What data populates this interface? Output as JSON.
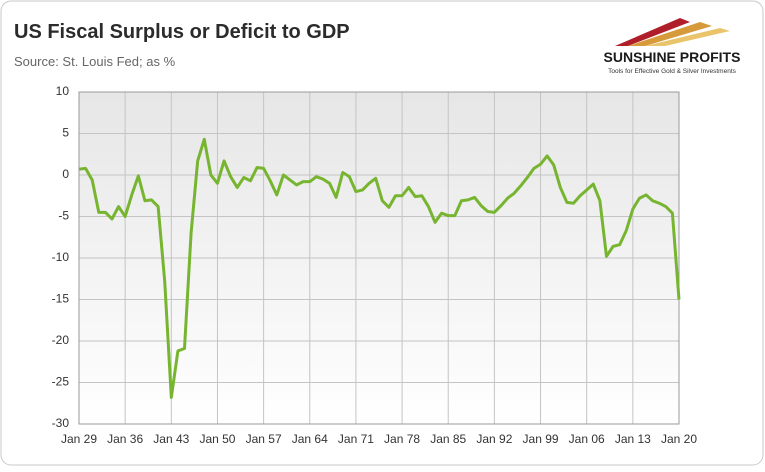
{
  "chart_data": {
    "type": "line",
    "title": "US Fiscal Surplus or Deficit to GDP",
    "subtitle": "Source: St. Louis Fed; as %",
    "categories": [
      "Jan 29",
      null,
      null,
      null,
      null,
      null,
      null,
      "Jan 36",
      null,
      null,
      null,
      null,
      null,
      null,
      "Jan 43",
      null,
      null,
      null,
      null,
      null,
      null,
      "Jan 50",
      null,
      null,
      null,
      null,
      null,
      null,
      "Jan 57",
      null,
      null,
      null,
      null,
      null,
      null,
      "Jan 64",
      null,
      null,
      null,
      null,
      null,
      null,
      "Jan 71",
      null,
      null,
      null,
      null,
      null,
      null,
      "Jan 78",
      null,
      null,
      null,
      null,
      null,
      null,
      "Jan 85",
      null,
      null,
      null,
      null,
      null,
      null,
      "Jan 92",
      null,
      null,
      null,
      null,
      null,
      null,
      "Jan 99",
      null,
      null,
      null,
      null,
      null,
      null,
      "Jan 06",
      null,
      null,
      null,
      null,
      null,
      null,
      "Jan 13",
      null,
      null,
      null,
      null,
      null,
      null,
      "Jan 20"
    ],
    "series": [
      {
        "color": "#77b530",
        "values": [
          0.7,
          0.8,
          -0.6,
          -4.5,
          -4.5,
          -5.3,
          -3.8,
          -5.0,
          -2.4,
          -0.1,
          -3.1,
          -3.0,
          -3.8,
          -12.8,
          -26.8,
          -21.2,
          -20.9,
          -7.0,
          1.7,
          4.3,
          0.0,
          -1.0,
          1.7,
          -0.2,
          -1.5,
          -0.3,
          -0.7,
          0.9,
          0.8,
          -0.7,
          -2.4,
          0.0,
          -0.6,
          -1.2,
          -0.8,
          -0.8,
          -0.2,
          -0.5,
          -1.0,
          -2.7,
          0.3,
          -0.2,
          -2.0,
          -1.8,
          -1.0,
          -0.4,
          -3.1,
          -3.9,
          -2.5,
          -2.5,
          -1.5,
          -2.6,
          -2.5,
          -3.8,
          -5.7,
          -4.6,
          -4.9,
          -4.9,
          -3.1,
          -3.0,
          -2.7,
          -3.7,
          -4.4,
          -4.5,
          -3.7,
          -2.8,
          -2.2,
          -1.3,
          -0.3,
          0.8,
          1.3,
          2.3,
          1.2,
          -1.5,
          -3.3,
          -3.4,
          -2.5,
          -1.8,
          -1.1,
          -3.1,
          -9.8,
          -8.6,
          -8.4,
          -6.7,
          -4.1,
          -2.8,
          -2.4,
          -3.1,
          -3.4,
          -3.8,
          -4.6,
          -15.0
        ]
      }
    ],
    "ylim": [
      -30,
      10
    ],
    "yticks": [
      -30,
      -25,
      -20,
      -15,
      -10,
      -5,
      0,
      5,
      10
    ],
    "grid": true
  },
  "logo": {
    "name": "SUNSHINE PROFITS",
    "tagline": "Tools for Effective Gold & Silver Investments"
  }
}
